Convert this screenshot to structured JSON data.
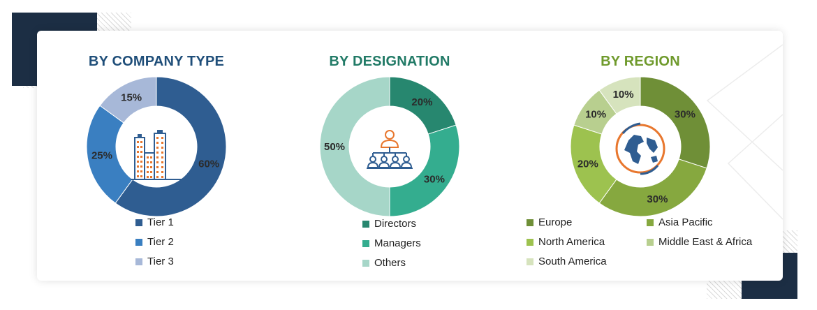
{
  "charts": [
    {
      "key": "company",
      "title": "BY COMPANY TYPE",
      "title_color": "#1f4e79",
      "icon": "buildings-icon",
      "slices": [
        {
          "label": "Tier 1",
          "value": 60,
          "display": "60%",
          "color": "#2f5d91"
        },
        {
          "label": "Tier 2",
          "value": 25,
          "display": "25%",
          "color": "#3a7fc1"
        },
        {
          "label": "Tier 3",
          "value": 15,
          "display": "15%",
          "color": "#a7b8d8"
        }
      ]
    },
    {
      "key": "designation",
      "title": "BY DESIGNATION",
      "title_color": "#217a66",
      "icon": "org-chart-people-icon",
      "slices": [
        {
          "label": "Directors",
          "value": 20,
          "display": "20%",
          "color": "#27876f"
        },
        {
          "label": "Managers",
          "value": 30,
          "display": "30%",
          "color": "#34ad8f"
        },
        {
          "label": "Others",
          "value": 50,
          "display": "50%",
          "color": "#a6d6c8"
        }
      ]
    },
    {
      "key": "region",
      "title": "BY REGION",
      "title_color": "#6f9a2c",
      "icon": "globe-icon",
      "slices": [
        {
          "label": "Europe",
          "value": 30,
          "display": "30%",
          "color": "#6f8f37"
        },
        {
          "label": "Asia Pacific",
          "value": 30,
          "display": "30%",
          "color": "#86a83f"
        },
        {
          "label": "North America",
          "value": 20,
          "display": "20%",
          "color": "#9dc24f"
        },
        {
          "label": "Middle East & Africa",
          "value": 10,
          "display": "10%",
          "color": "#b8cf8f"
        },
        {
          "label": "South America",
          "value": 10,
          "display": "10%",
          "color": "#d6e3bd"
        }
      ]
    }
  ],
  "chart_data": [
    {
      "type": "pie",
      "title": "BY COMPANY TYPE",
      "categories": [
        "Tier 1",
        "Tier 2",
        "Tier 3"
      ],
      "values": [
        60,
        25,
        15
      ],
      "unit": "%"
    },
    {
      "type": "pie",
      "title": "BY DESIGNATION",
      "categories": [
        "Directors",
        "Managers",
        "Others"
      ],
      "values": [
        20,
        30,
        50
      ],
      "unit": "%"
    },
    {
      "type": "pie",
      "title": "BY REGION",
      "categories": [
        "Europe",
        "Asia Pacific",
        "North America",
        "Middle East & Africa",
        "South America"
      ],
      "values": [
        30,
        30,
        20,
        10,
        10
      ],
      "unit": "%"
    }
  ],
  "colors": {
    "deco_navy": "#1c2e44",
    "icon_orange": "#e8772e",
    "icon_blue": "#2f5d91"
  }
}
